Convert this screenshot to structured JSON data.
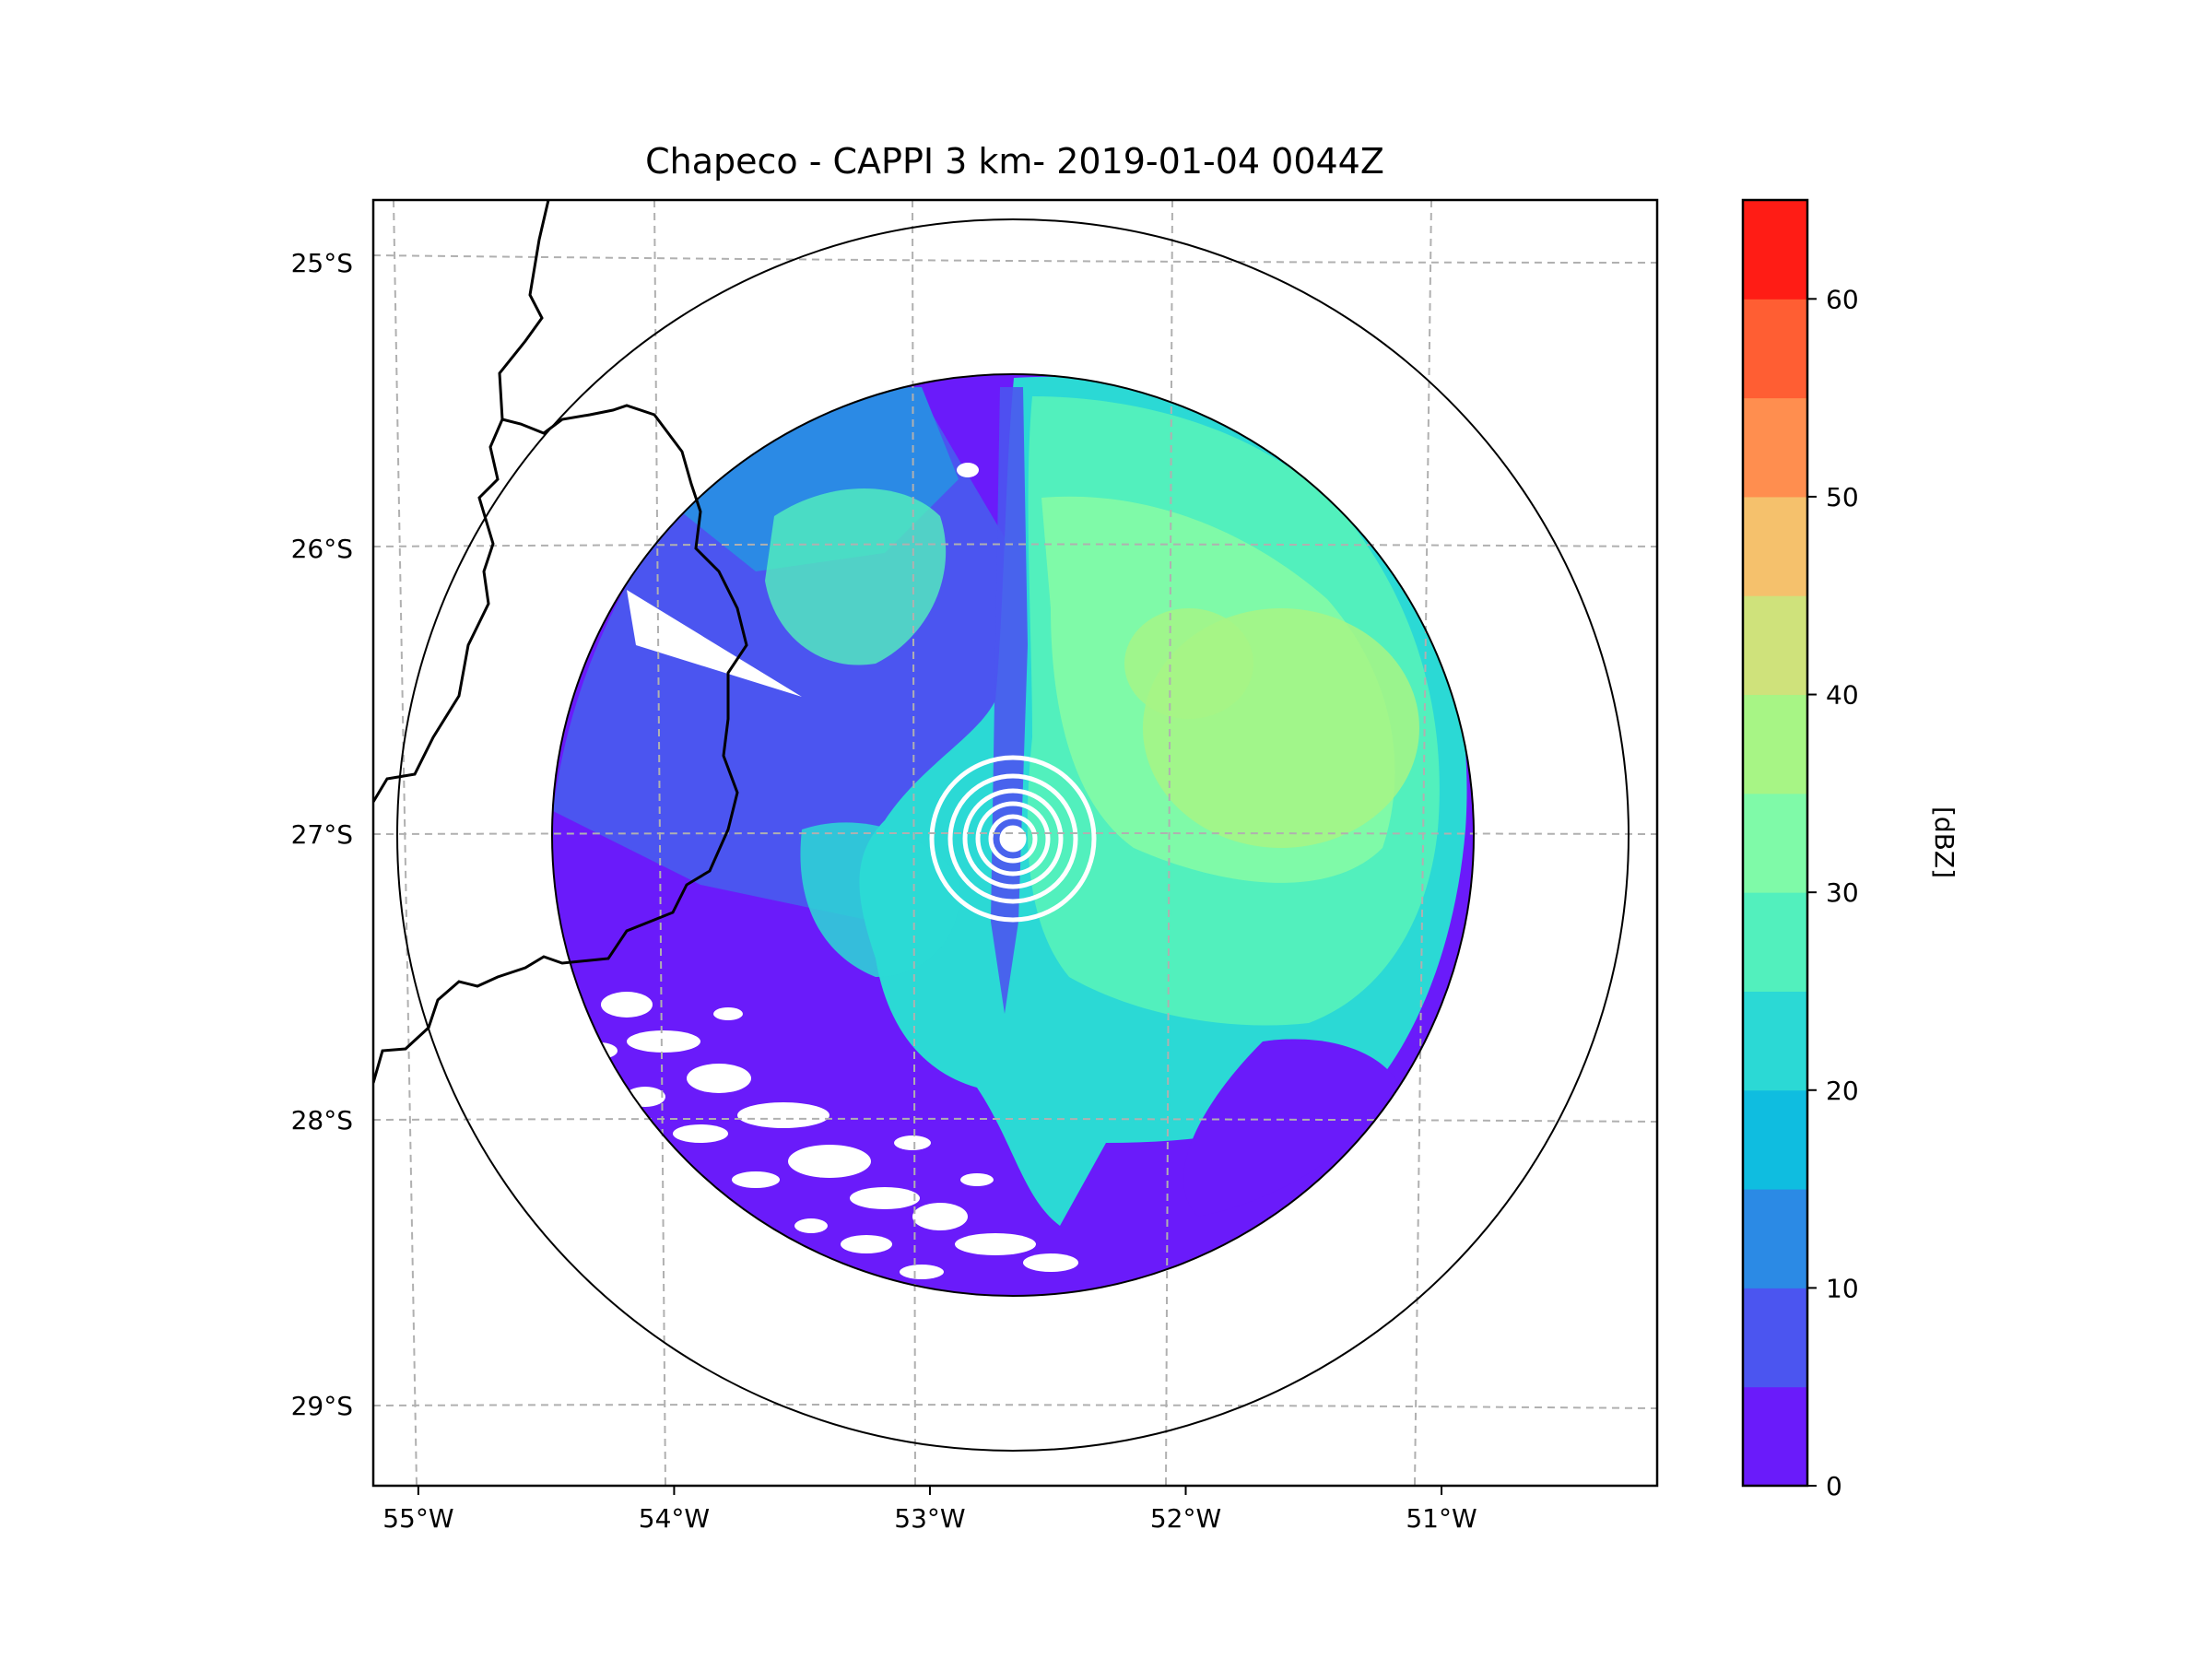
{
  "chart_data": {
    "type": "heatmap",
    "title": "Chapeco - CAPPI 3 km- 2019-01-04 0044Z",
    "x_ticks": [
      "55°W",
      "54°W",
      "53°W",
      "52°W",
      "51°W"
    ],
    "x_tick_values": [
      -55,
      -54,
      -53,
      -52,
      -51
    ],
    "y_ticks": [
      "25°S",
      "26°S",
      "27°S",
      "28°S",
      "29°S"
    ],
    "y_tick_values": [
      -25,
      -26,
      -27,
      -28,
      -29
    ],
    "xlim": [
      -55.18,
      -50.05
    ],
    "ylim": [
      -29.28,
      -24.78
    ],
    "grid": true,
    "radar_center": {
      "lon": -52.6,
      "lat": -27.02
    },
    "colorbar": {
      "label": "[dBZ]",
      "ticks": [
        "0",
        "10",
        "20",
        "30",
        "40",
        "50",
        "60"
      ],
      "tick_values": [
        0,
        10,
        20,
        30,
        40,
        50,
        60
      ],
      "range": [
        0,
        65
      ],
      "bins": [
        {
          "from": 0,
          "to": 5,
          "color": "#6a1bfa"
        },
        {
          "from": 5,
          "to": 10,
          "color": "#4b55f0"
        },
        {
          "from": 10,
          "to": 15,
          "color": "#2b8ae5"
        },
        {
          "from": 15,
          "to": 20,
          "color": "#0fbde0"
        },
        {
          "from": 20,
          "to": 25,
          "color": "#2bd9d5"
        },
        {
          "from": 25,
          "to": 30,
          "color": "#52f0bd"
        },
        {
          "from": 30,
          "to": 35,
          "color": "#7ffaa8"
        },
        {
          "from": 35,
          "to": 40,
          "color": "#a7f585"
        },
        {
          "from": 40,
          "to": 45,
          "color": "#cfe27b"
        },
        {
          "from": 45,
          "to": 50,
          "color": "#f5c16c"
        },
        {
          "from": 50,
          "to": 55,
          "color": "#ff8e4f"
        },
        {
          "from": 55,
          "to": 60,
          "color": "#ff5e33"
        },
        {
          "from": 60,
          "to": 65,
          "color": "#ff1c15"
        }
      ]
    }
  }
}
